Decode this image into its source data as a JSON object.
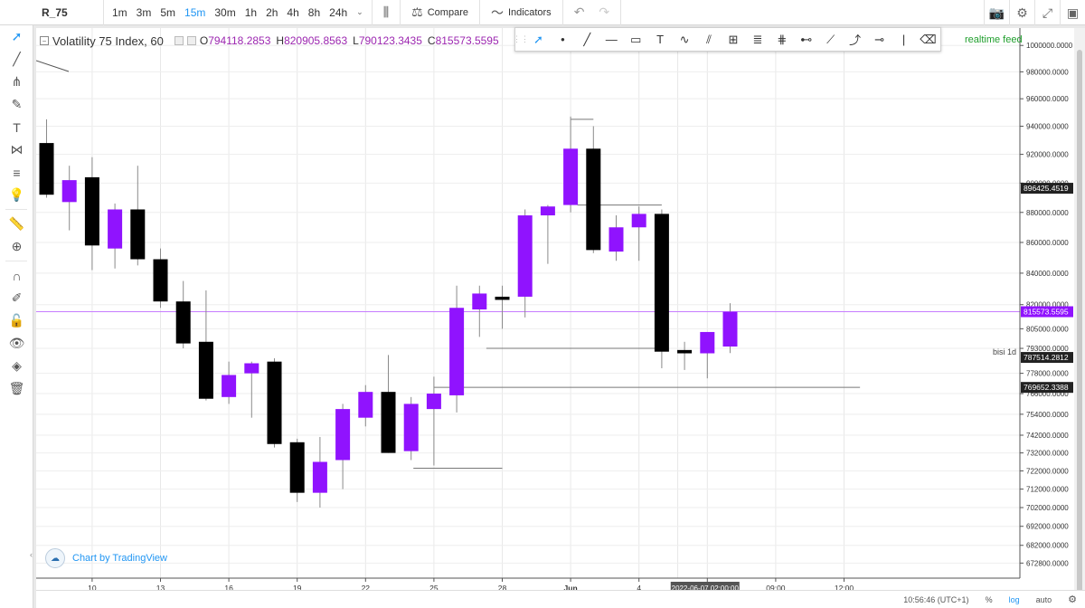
{
  "symbol": "R_75",
  "timeframes": [
    "1m",
    "3m",
    "5m",
    "15m",
    "30m",
    "1h",
    "2h",
    "4h",
    "8h",
    "24h"
  ],
  "active_timeframe": "15m",
  "toolbar": {
    "compare_label": "Compare",
    "indicators_label": "Indicators"
  },
  "legend": {
    "title": "Volatility 75 Index, 60",
    "o_label": "O",
    "o_value": "794118.2853",
    "h_label": "H",
    "h_value": "820905.8563",
    "l_label": "L",
    "l_value": "790123.3435",
    "c_label": "C",
    "c_value": "815573.5595"
  },
  "realtime_label": "realtime feed",
  "credit_label": "Chart by TradingView",
  "bottom": {
    "time": "10:56:46 (UTC+1)",
    "percent": "%",
    "log": "log",
    "auto": "auto"
  },
  "colors": {
    "bull": "#9013fe",
    "bear": "#000000",
    "accent": "#2196f3",
    "price_line": "#c77dff"
  },
  "chart_data": {
    "type": "candlestick",
    "title": "Volatility 75 Index, 60",
    "y_scale": "log",
    "ylim": [
      666000,
      1012000
    ],
    "y_ticks": [
      1000000,
      980000,
      960000,
      940000,
      920000,
      900000,
      880000,
      860000,
      840000,
      820000,
      805000,
      793000,
      778000,
      766000,
      754000,
      742000,
      732000,
      722000,
      712000,
      702000,
      692000,
      682000,
      672800
    ],
    "y_tick_labels": [
      "1000000.0000",
      "980000.0000",
      "960000.0000",
      "940000.0000",
      "920000.0000",
      "900000.0000",
      "880000.0000",
      "860000.0000",
      "840000.0000",
      "820000.0000",
      "805000.0000",
      "793000.0000",
      "778000.0000",
      "766000.0000",
      "754000.0000",
      "742000.0000",
      "732000.0000",
      "722000.0000",
      "712000.0000",
      "702000.0000",
      "692000.0000",
      "682000.0000",
      "672800.0000"
    ],
    "x_tick_labels": [
      "10",
      "13",
      "16",
      "19",
      "22",
      "25",
      "28",
      "Jun",
      "4",
      "",
      "06:00",
      "09:00",
      "12:00"
    ],
    "x_tick_index": [
      2,
      5,
      8,
      11,
      14,
      17,
      20,
      23,
      26,
      null,
      29,
      32,
      35
    ],
    "crosshair_time_label": "2022-06-07 02:00:00",
    "candles": [
      {
        "o": 928000,
        "h": 945000,
        "l": 890000,
        "c": 892000
      },
      {
        "o": 887000,
        "h": 912000,
        "l": 868000,
        "c": 902000
      },
      {
        "o": 904000,
        "h": 918000,
        "l": 842000,
        "c": 858000
      },
      {
        "o": 856000,
        "h": 886000,
        "l": 843000,
        "c": 882000
      },
      {
        "o": 882000,
        "h": 912000,
        "l": 845000,
        "c": 849000
      },
      {
        "o": 849000,
        "h": 856000,
        "l": 818000,
        "c": 822000
      },
      {
        "o": 822000,
        "h": 835000,
        "l": 793000,
        "c": 796000
      },
      {
        "o": 797000,
        "h": 829000,
        "l": 762000,
        "c": 763000
      },
      {
        "o": 764000,
        "h": 785000,
        "l": 760000,
        "c": 777000
      },
      {
        "o": 778000,
        "h": 785000,
        "l": 752000,
        "c": 784000
      },
      {
        "o": 785000,
        "h": 787000,
        "l": 735000,
        "c": 737000
      },
      {
        "o": 738000,
        "h": 740000,
        "l": 705000,
        "c": 710000
      },
      {
        "o": 710000,
        "h": 741000,
        "l": 702000,
        "c": 727000
      },
      {
        "o": 728000,
        "h": 760000,
        "l": 712000,
        "c": 757000
      },
      {
        "o": 752000,
        "h": 771000,
        "l": 747000,
        "c": 767000
      },
      {
        "o": 767000,
        "h": 789000,
        "l": 732000,
        "c": 732000
      },
      {
        "o": 733000,
        "h": 764000,
        "l": 728000,
        "c": 760000
      },
      {
        "o": 757000,
        "h": 776000,
        "l": 725000,
        "c": 766000
      },
      {
        "o": 765000,
        "h": 832000,
        "l": 755000,
        "c": 818000
      },
      {
        "o": 817000,
        "h": 832000,
        "l": 800000,
        "c": 827000
      },
      {
        "o": 825000,
        "h": 832000,
        "l": 805000,
        "c": 823000
      },
      {
        "o": 825000,
        "h": 882000,
        "l": 812000,
        "c": 878000
      },
      {
        "o": 878000,
        "h": 885000,
        "l": 846000,
        "c": 884000
      },
      {
        "o": 885000,
        "h": 947000,
        "l": 880000,
        "c": 924000
      },
      {
        "o": 924000,
        "h": 940000,
        "l": 853000,
        "c": 855000
      },
      {
        "o": 854000,
        "h": 878000,
        "l": 848000,
        "c": 870000
      },
      {
        "o": 870000,
        "h": 884000,
        "l": 848000,
        "c": 879000
      },
      {
        "o": 879000,
        "h": 882000,
        "l": 781000,
        "c": 791000
      },
      {
        "o": 792000,
        "h": 797000,
        "l": 780000,
        "c": 790000
      },
      {
        "o": 790000,
        "h": 803000,
        "l": 775000,
        "c": 803000
      },
      {
        "o": 794118,
        "h": 820906,
        "l": 790123,
        "c": 815574
      }
    ],
    "horizontal_lines": [
      {
        "label": "896425.4519",
        "value": 896425
      },
      {
        "label": "815573.5595",
        "value": 815574,
        "current": true
      },
      {
        "label": "787514.2812",
        "value": 787514,
        "name": "bisi 1d"
      },
      {
        "label": "769652.3388",
        "value": 769652
      }
    ],
    "drawn_segments": [
      {
        "from_index": 23,
        "to_index": 24,
        "value": 945000
      },
      {
        "from_index": 23.3,
        "to_index": 27,
        "value": 885000
      },
      {
        "from_index": 19.3,
        "to_index": 27,
        "value": 793000
      },
      {
        "from_index": 17,
        "to_index": 35.7,
        "value": 769652
      },
      {
        "from_index": 16.1,
        "to_index": 20,
        "value": 723500
      }
    ]
  },
  "left_tools": [
    "cursor-icon",
    "trendline-icon",
    "pitchfork-icon",
    "brush-icon",
    "text-icon",
    "pattern-icon",
    "fib-icon",
    "lightbulb-icon",
    "ruler-icon",
    "zoom-icon",
    "magnet-icon",
    "lock-drawing-icon",
    "unlock-icon",
    "eye-icon",
    "layers-icon",
    "trash-icon"
  ],
  "draw_tools": [
    "cursor-icon",
    "dot-icon",
    "line-icon",
    "hline-icon",
    "rect-icon",
    "text-icon",
    "curve-icon",
    "channel-icon",
    "frame-icon",
    "fib-icon",
    "gann-icon",
    "ruler-icon",
    "brush-icon",
    "path-icon",
    "crossline-icon",
    "vline-icon",
    "eraser-icon"
  ]
}
